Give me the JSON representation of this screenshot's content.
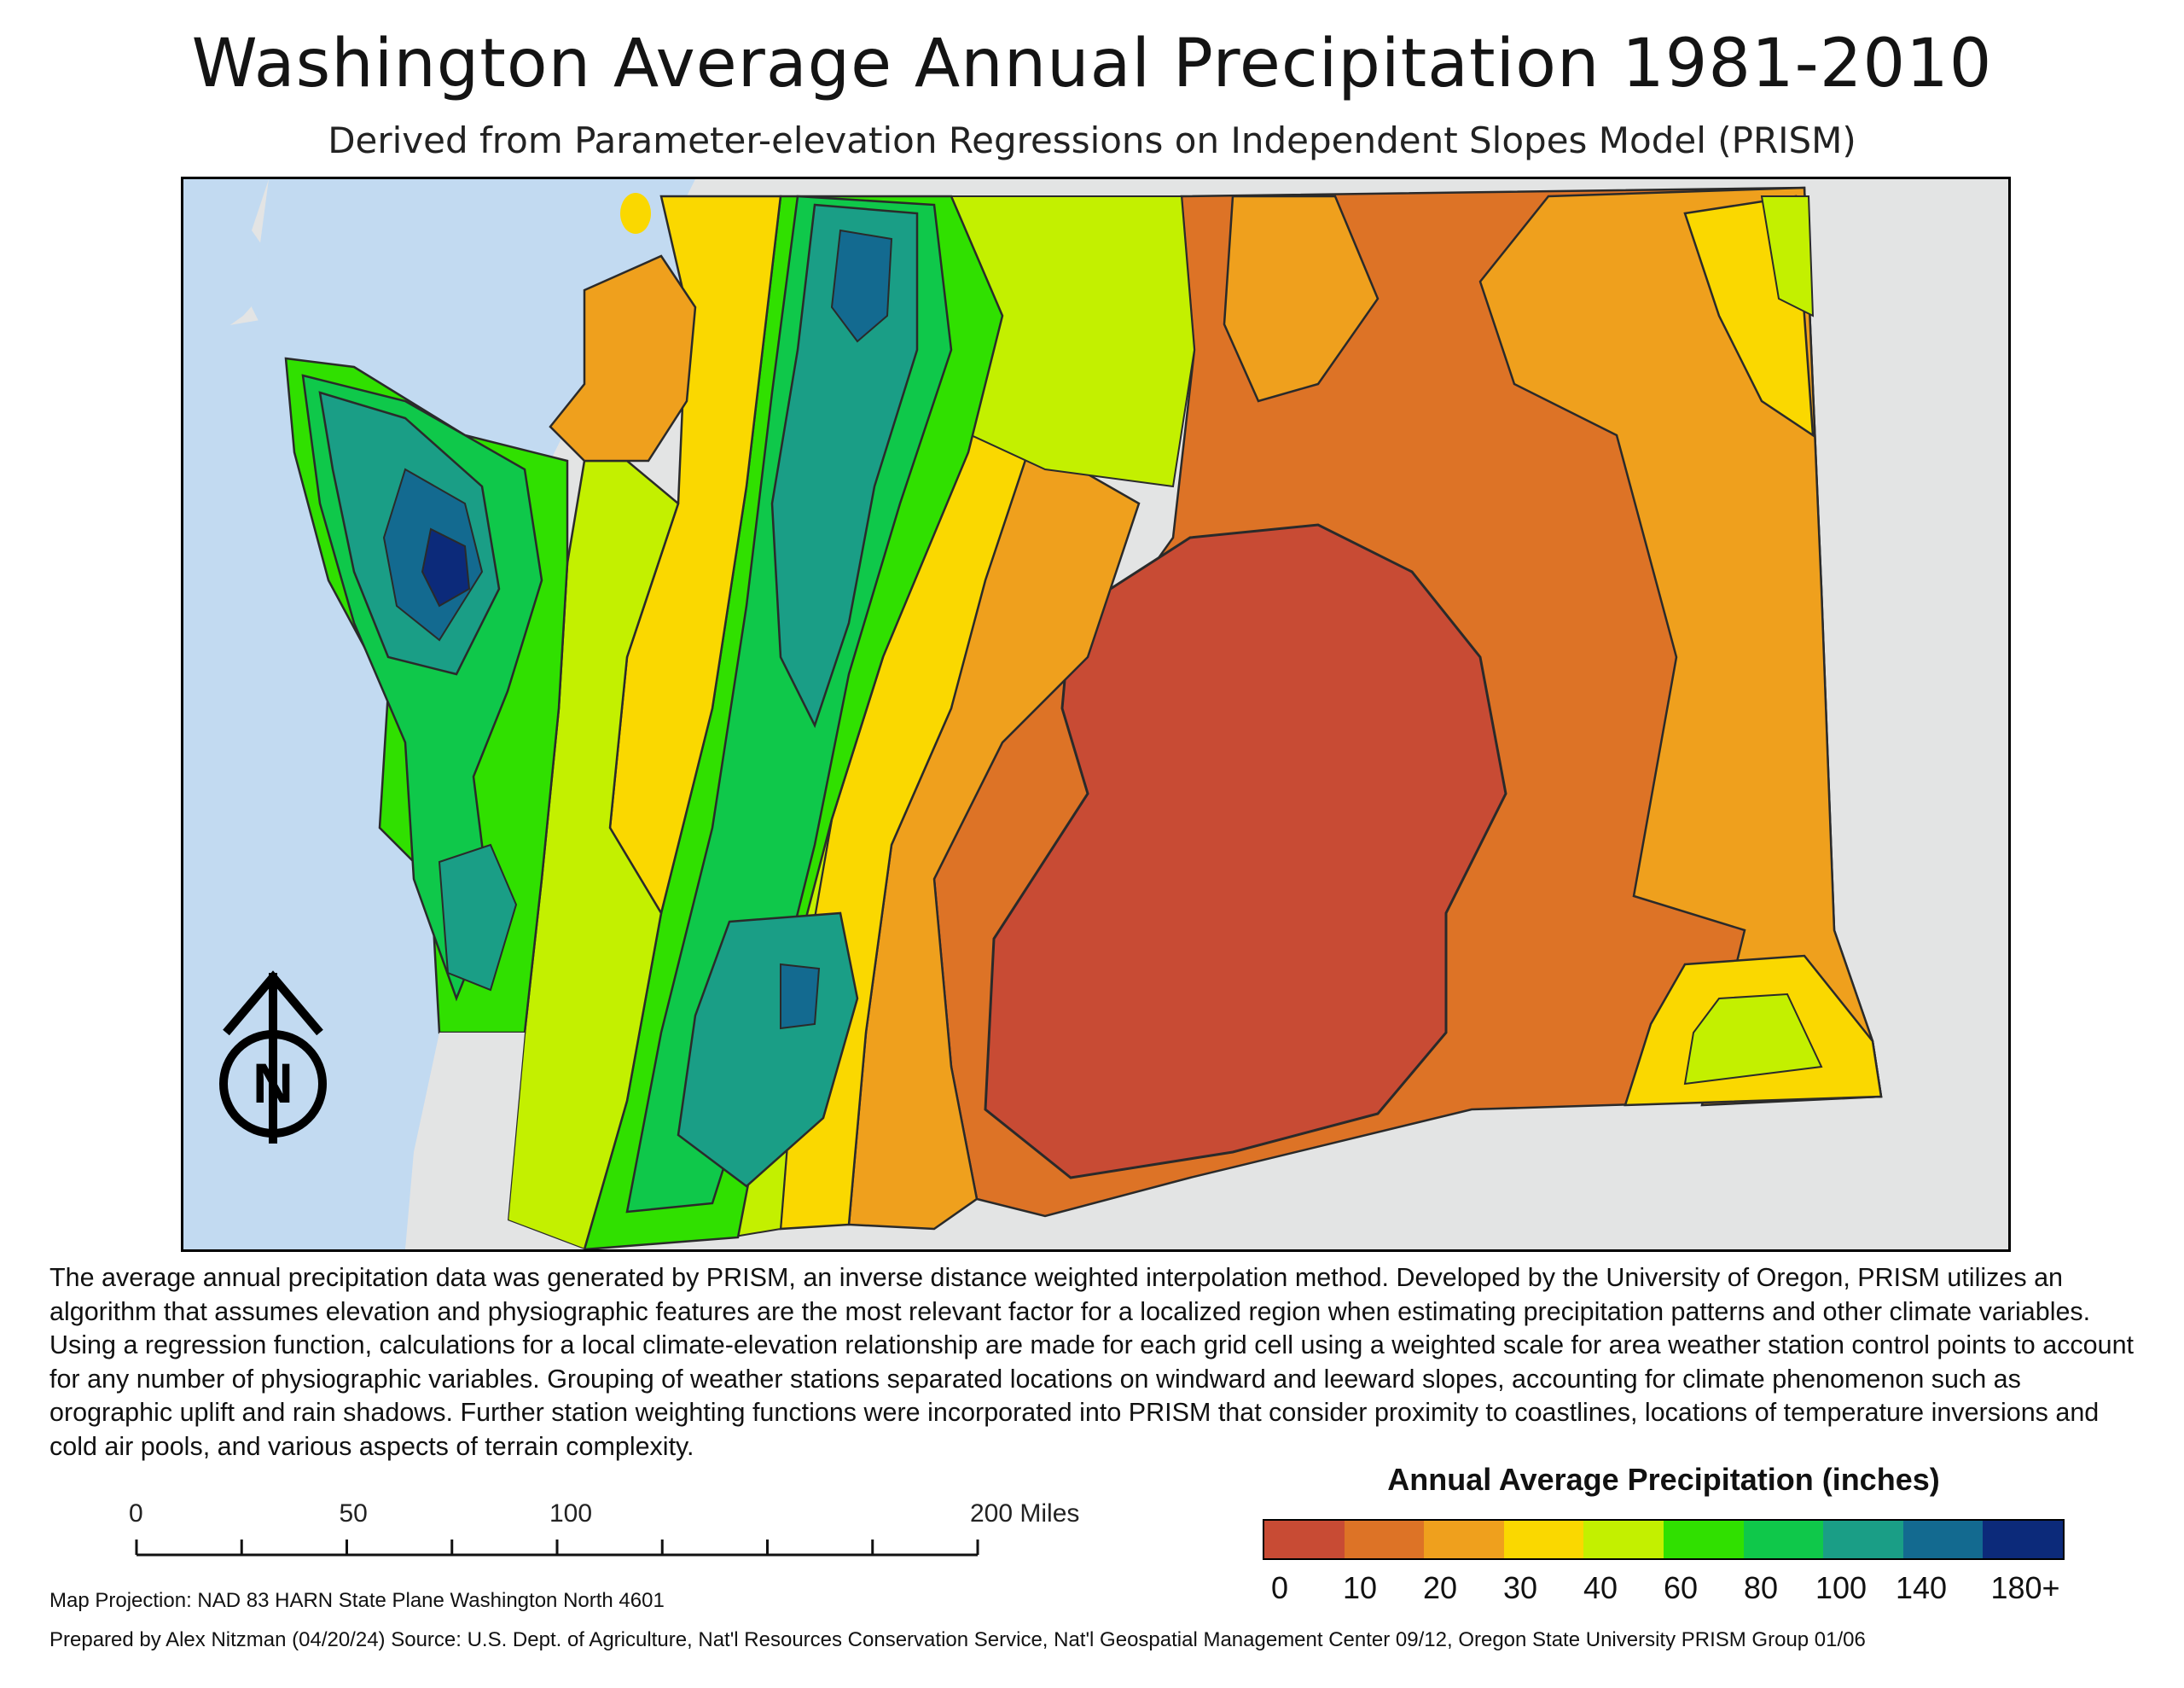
{
  "title": "Washington Average Annual Precipitation 1981-2010",
  "subtitle": "Derived from Parameter-elevation Regressions on Independent Slopes Model (PRISM)",
  "description": "The average annual precipitation data was generated by PRISM, an inverse distance weighted interpolation method. Developed by the University of Oregon, PRISM utilizes an algorithm that assumes elevation and physiographic features are the most relevant factor for a localized region when estimating precipitation patterns and other climate variables. Using a regression function, calculations for a local climate-elevation relationship are made for each grid cell using a weighted scale for area weather station control points to account for any number of physiographic variables. Grouping of weather stations separated locations on windward and leeward slopes, accounting for climate phenomenon such as orographic uplift and rain shadows. Further station weighting functions were incorporated into PRISM that consider proximity to coastlines, locations of temperature inversions and cold air pools, and various aspects of terrain complexity.",
  "legend": {
    "title": "Annual Average Precipitation (inches)",
    "colors": [
      "#c84b34",
      "#dd7326",
      "#efa01d",
      "#fad800",
      "#c3f000",
      "#30e000",
      "#0fc84a",
      "#1a9e86",
      "#136a90",
      "#0c2a7a"
    ],
    "labels": [
      "0",
      "10",
      "20",
      "30",
      "40",
      "60",
      "80",
      "100",
      "140",
      "180+"
    ]
  },
  "north_arrow": {
    "letter": "N"
  },
  "scale_bar": {
    "labels": [
      "0",
      "50",
      "100",
      "200 Miles"
    ],
    "values": [
      0,
      50,
      100,
      200
    ]
  },
  "projection": "Map Projection: NAD 83 HARN State Plane Washington North 4601",
  "credits": "Prepared by Alex Nitzman (04/20/24) Source: U.S. Dept. of Agriculture, Nat'l Resources Conservation Service, Nat'l Geospatial Management Center 09/12, Oregon State University PRISM Group 01/06",
  "colors": {
    "water": "#c2daf1",
    "land_outside": "#e3e4e4",
    "contour": "#2a2a2a"
  }
}
